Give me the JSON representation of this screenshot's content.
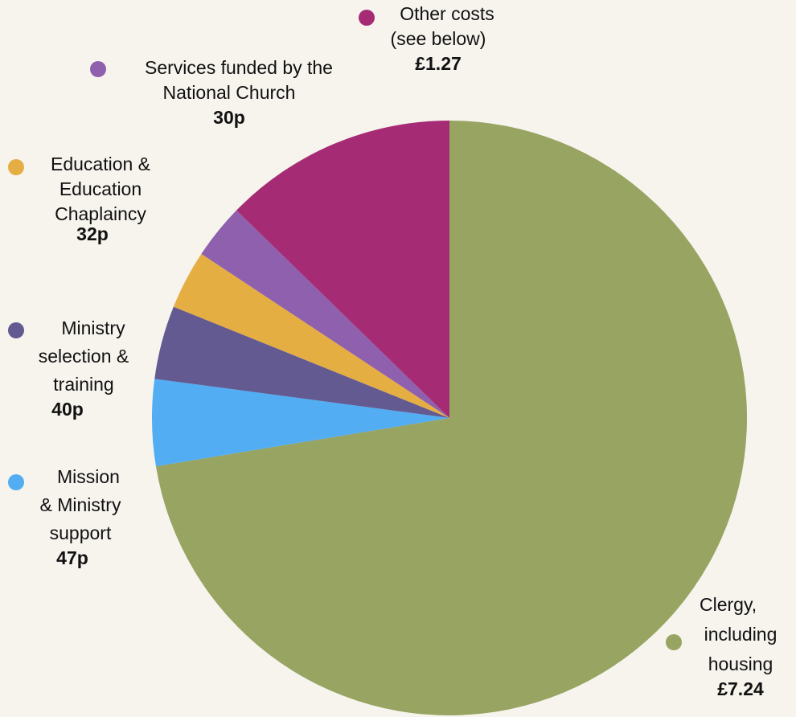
{
  "chart_data": {
    "type": "pie",
    "slices": [
      {
        "key": "clergy",
        "lines": [
          "Clergy,",
          "including",
          "housing"
        ],
        "value_label": "£7.24",
        "value": 7.24,
        "color": "#98a462"
      },
      {
        "key": "mission",
        "lines": [
          "Mission",
          "& Ministry",
          "support"
        ],
        "value_label": "47p",
        "value": 0.47,
        "color": "#52adf2"
      },
      {
        "key": "ministry",
        "lines": [
          "Ministry",
          "selection &",
          "training"
        ],
        "value_label": "40p",
        "value": 0.4,
        "color": "#635a92"
      },
      {
        "key": "education",
        "lines": [
          "Education &",
          "Education",
          "Chaplaincy"
        ],
        "value_label": "32p",
        "value": 0.32,
        "color": "#e5ae43"
      },
      {
        "key": "services",
        "lines": [
          "Services funded by the",
          "National Church"
        ],
        "value_label": "30p",
        "value": 0.3,
        "color": "#8f60ad"
      },
      {
        "key": "other",
        "lines": [
          "Other costs",
          "(see below)"
        ],
        "value_label": "£1.27",
        "value": 1.27,
        "color": "#a52b74"
      }
    ]
  }
}
